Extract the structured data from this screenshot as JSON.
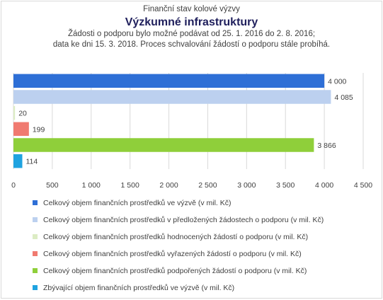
{
  "chart_data": {
    "type": "bar",
    "orientation": "horizontal",
    "supertitle": "Finanční stav kolové výzvy",
    "title": "Výzkumné infrastruktury",
    "subtitle_lines": [
      "Žádosti o podporu bylo možné  podávat od 25. 1. 2016 do 2. 8. 2016;",
      "data ke dni 15. 3. 2018. Proces schvalování žádostí o podporu stále probíhá."
    ],
    "xlim": [
      0,
      4500
    ],
    "xticks": [
      0,
      500,
      1000,
      1500,
      2000,
      2500,
      3000,
      3500,
      4000,
      4500
    ],
    "xtick_labels": [
      "0",
      "500",
      "1 000",
      "1 500",
      "2 000",
      "2 500",
      "3 000",
      "3 500",
      "4 000",
      "4 500"
    ],
    "grid": true,
    "legend_position": "bottom",
    "series": [
      {
        "name": "Celkový objem finančních prostředků ve výzvě (v mil. Kč)",
        "value": 4000,
        "label": "4 000",
        "color": "#2e6fd6"
      },
      {
        "name": "Celkový objem finančních prostředků v předložených žádostech o podporu (v mil. Kč)",
        "value": 4085,
        "label": "4 085",
        "color": "#bcd0ef"
      },
      {
        "name": "Celkový objem finančních prostředků hodnocených žádostí o podporu (v mil. Kč)",
        "value": 20,
        "label": "20",
        "color": "#dcecc4"
      },
      {
        "name": "Celkový objem finančních prostředků vyřazených žádostí o podporu (v mil. Kč)",
        "value": 199,
        "label": "199",
        "color": "#f07a70"
      },
      {
        "name": "Celkový objem finančních prostředků podpořených žádostí o podporu (v mil. Kč)",
        "value": 3866,
        "label": "3 866",
        "color": "#8fcf3a"
      },
      {
        "name": "Zbývající objem finančních prostředků ve výzvě (v mil. Kč)",
        "value": 114,
        "label": "114",
        "color": "#1fa3e0"
      }
    ]
  }
}
